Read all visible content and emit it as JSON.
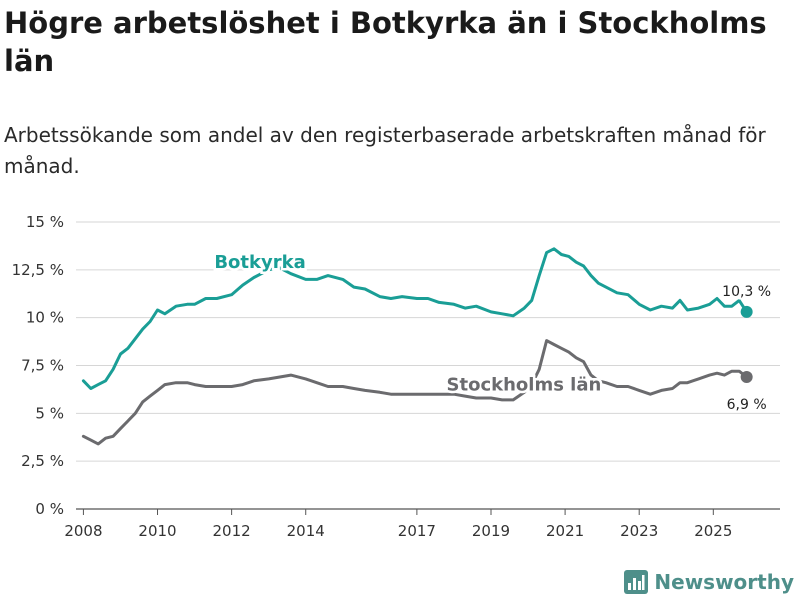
{
  "title": "Högre arbetslöshet i Botkyrka än i Stockholms län",
  "subtitle": "Arbetssökande som andel av den registerbaserade arbetskraften månad för månad.",
  "brand": {
    "name": "Newsworthy",
    "icon": "newsworthy-logo-icon"
  },
  "colors": {
    "botkyrka": "#1a9e96",
    "stockholm": "#6b6b6e",
    "grid": "#d6d6d6",
    "axis": "#555555"
  },
  "chart_data": {
    "type": "line",
    "title": "Högre arbetslöshet i Botkyrka än i Stockholms län",
    "subtitle": "Arbetssökande som andel av den registerbaserade arbetskraften månad för månad.",
    "xlabel": "",
    "ylabel": "",
    "xlim": [
      2007.8,
      2026.8
    ],
    "ylim": [
      0,
      15
    ],
    "grid": true,
    "y_ticks": [
      0,
      2.5,
      5,
      7.5,
      10,
      12.5,
      15
    ],
    "y_tick_labels": [
      "0 %",
      "2,5 %",
      "5 %",
      "7,5 %",
      "10 %",
      "12,5 %",
      "15 %"
    ],
    "x_ticks": [
      2008,
      2010,
      2012,
      2014,
      2017,
      2019,
      2021,
      2023,
      2025
    ],
    "x_tick_labels": [
      "2008",
      "2010",
      "2012",
      "2014",
      "2017",
      "2019",
      "2021",
      "2023",
      "2025"
    ],
    "series": [
      {
        "name": "Botkyrka",
        "end_label": "10,3 %",
        "x": [
          2008.0,
          2008.2,
          2008.4,
          2008.6,
          2008.8,
          2009.0,
          2009.2,
          2009.4,
          2009.6,
          2009.8,
          2010.0,
          2010.2,
          2010.5,
          2010.8,
          2011.0,
          2011.3,
          2011.6,
          2012.0,
          2012.3,
          2012.6,
          2013.0,
          2013.3,
          2013.6,
          2014.0,
          2014.3,
          2014.6,
          2015.0,
          2015.3,
          2015.6,
          2016.0,
          2016.3,
          2016.6,
          2017.0,
          2017.3,
          2017.6,
          2018.0,
          2018.3,
          2018.6,
          2019.0,
          2019.3,
          2019.6,
          2019.9,
          2020.1,
          2020.3,
          2020.5,
          2020.7,
          2020.9,
          2021.1,
          2021.3,
          2021.5,
          2021.7,
          2021.9,
          2022.1,
          2022.4,
          2022.7,
          2023.0,
          2023.3,
          2023.6,
          2023.9,
          2024.1,
          2024.3,
          2024.6,
          2024.9,
          2025.1,
          2025.3,
          2025.5,
          2025.7,
          2025.9
        ],
        "values": [
          6.7,
          6.3,
          6.5,
          6.7,
          7.3,
          8.1,
          8.4,
          8.9,
          9.4,
          9.8,
          10.4,
          10.2,
          10.6,
          10.7,
          10.7,
          11.0,
          11.0,
          11.2,
          11.7,
          12.1,
          12.5,
          12.6,
          12.3,
          12.0,
          12.0,
          12.2,
          12.0,
          11.6,
          11.5,
          11.1,
          11.0,
          11.1,
          11.0,
          11.0,
          10.8,
          10.7,
          10.5,
          10.6,
          10.3,
          10.2,
          10.1,
          10.5,
          10.9,
          12.2,
          13.4,
          13.6,
          13.3,
          13.2,
          12.9,
          12.7,
          12.2,
          11.8,
          11.6,
          11.3,
          11.2,
          10.7,
          10.4,
          10.6,
          10.5,
          10.9,
          10.4,
          10.5,
          10.7,
          11.0,
          10.6,
          10.6,
          10.9,
          10.3
        ]
      },
      {
        "name": "Stockholms län",
        "end_label": "6,9 %",
        "x": [
          2008.0,
          2008.2,
          2008.4,
          2008.6,
          2008.8,
          2009.0,
          2009.2,
          2009.4,
          2009.6,
          2009.8,
          2010.0,
          2010.2,
          2010.5,
          2010.8,
          2011.0,
          2011.3,
          2011.6,
          2012.0,
          2012.3,
          2012.6,
          2013.0,
          2013.3,
          2013.6,
          2014.0,
          2014.3,
          2014.6,
          2015.0,
          2015.3,
          2015.6,
          2016.0,
          2016.3,
          2016.6,
          2017.0,
          2017.3,
          2017.6,
          2018.0,
          2018.3,
          2018.6,
          2019.0,
          2019.3,
          2019.6,
          2019.9,
          2020.1,
          2020.3,
          2020.5,
          2020.7,
          2020.9,
          2021.1,
          2021.3,
          2021.5,
          2021.7,
          2021.9,
          2022.1,
          2022.4,
          2022.7,
          2023.0,
          2023.3,
          2023.6,
          2023.9,
          2024.1,
          2024.3,
          2024.6,
          2024.9,
          2025.1,
          2025.3,
          2025.5,
          2025.7,
          2025.9
        ],
        "values": [
          3.8,
          3.6,
          3.4,
          3.7,
          3.8,
          4.2,
          4.6,
          5.0,
          5.6,
          5.9,
          6.2,
          6.5,
          6.6,
          6.6,
          6.5,
          6.4,
          6.4,
          6.4,
          6.5,
          6.7,
          6.8,
          6.9,
          7.0,
          6.8,
          6.6,
          6.4,
          6.4,
          6.3,
          6.2,
          6.1,
          6.0,
          6.0,
          6.0,
          6.0,
          6.0,
          6.0,
          5.9,
          5.8,
          5.8,
          5.7,
          5.7,
          6.1,
          6.5,
          7.3,
          8.8,
          8.6,
          8.4,
          8.2,
          7.9,
          7.7,
          7.0,
          6.7,
          6.6,
          6.4,
          6.4,
          6.2,
          6.0,
          6.2,
          6.3,
          6.6,
          6.6,
          6.8,
          7.0,
          7.1,
          7.0,
          7.2,
          7.2,
          6.9
        ]
      }
    ]
  }
}
